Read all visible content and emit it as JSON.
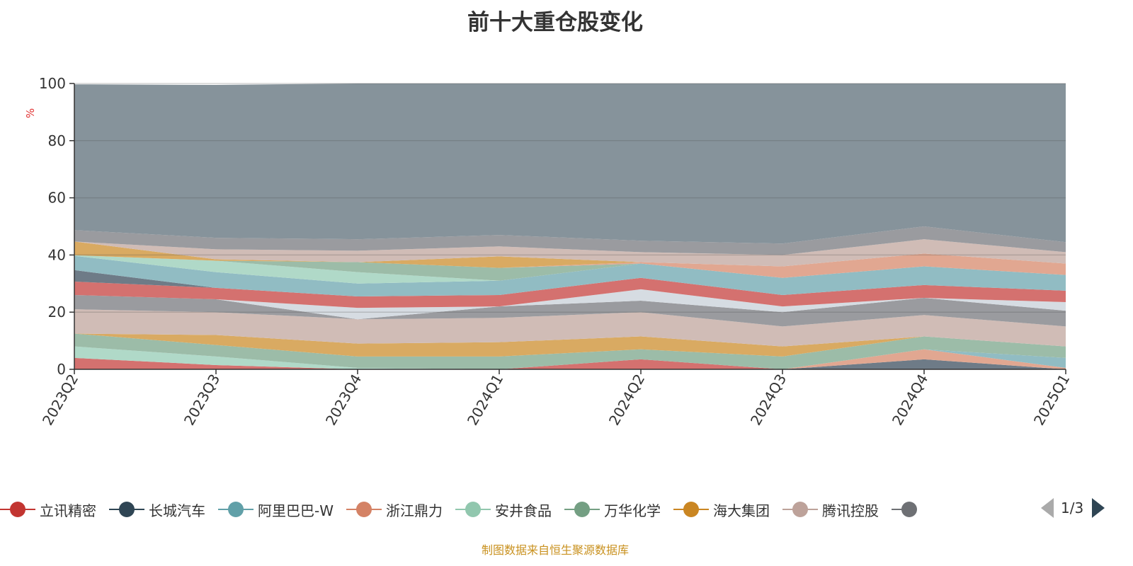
{
  "title": "前十大重仓股变化",
  "footer": "制图数据来自恒生聚源数据库",
  "legend": {
    "items": [
      {
        "name": "立讯精密",
        "color": "#c23531"
      },
      {
        "name": "长城汽车",
        "color": "#2f4554"
      },
      {
        "name": "阿里巴巴-W",
        "color": "#61a0a8"
      },
      {
        "name": "浙江鼎力",
        "color": "#d48265"
      },
      {
        "name": "安井食品",
        "color": "#91c7ae"
      },
      {
        "name": "万华化学",
        "color": "#749f83"
      },
      {
        "name": "海大集团",
        "color": "#ca8622"
      },
      {
        "name": "腾讯控股",
        "color": "#bda29a"
      },
      {
        "name": "",
        "color": "#6e7074"
      }
    ],
    "page": "1/3"
  },
  "chart_data": {
    "type": "area",
    "stacked": true,
    "title": "前十大重仓股变化",
    "xlabel": "",
    "ylabel": "%",
    "ylim": [
      0,
      100
    ],
    "yticks": [
      0,
      20,
      40,
      60,
      80,
      100
    ],
    "grid": true,
    "legend_position": "bottom",
    "categories": [
      "2023Q2",
      "2023Q3",
      "2023Q4",
      "2024Q1",
      "2024Q2",
      "2024Q3",
      "2024Q4",
      "2025Q1"
    ],
    "series": [
      {
        "name": "立讯精密",
        "color": "#d4716f",
        "values": [
          4,
          1.5,
          0,
          0,
          3.5,
          0,
          0,
          0
        ]
      },
      {
        "name": "长城汽车",
        "color": "#6e7b87",
        "values": [
          0,
          0,
          0,
          0,
          0,
          0,
          3.5,
          0
        ]
      },
      {
        "name": "浙江鼎力",
        "color": "#e1a791",
        "values": [
          0,
          0,
          0,
          0,
          0,
          0,
          3.5,
          0.5
        ]
      },
      {
        "name": "阿里巴巴-W",
        "color": "#91bcc3",
        "values": [
          0,
          0,
          0,
          0,
          0,
          0,
          0,
          3.5
        ]
      },
      {
        "name": "安井食品",
        "color": "#b0d9c8",
        "values": [
          4,
          3,
          0.5,
          0,
          0,
          0,
          0,
          0
        ]
      },
      {
        "name": "万华化学",
        "color": "#9cbca8",
        "values": [
          4.5,
          4,
          4,
          4.5,
          3.5,
          4.5,
          4.5,
          4
        ]
      },
      {
        "name": "海大集团",
        "color": "#d9aa62",
        "values": [
          0,
          3.5,
          4.5,
          5,
          4.5,
          3.5,
          0,
          0
        ]
      },
      {
        "name": "腾讯控股",
        "color": "#d0bcb6",
        "values": [
          8.5,
          8,
          8.5,
          8.5,
          8.5,
          7,
          7.5,
          7
        ]
      },
      {
        "name": null,
        "color": "#9a9b9f",
        "values": [
          5,
          4.5,
          0,
          4,
          4,
          5,
          6,
          5.5
        ]
      },
      {
        "name": null,
        "color": "#d6dce2",
        "values": [
          0,
          0,
          4,
          0,
          4,
          2,
          0,
          3
        ]
      },
      {
        "name": "立讯精密",
        "color": "#d4716f",
        "values": [
          4.7,
          4,
          4,
          4,
          4,
          4,
          4.5,
          4
        ]
      },
      {
        "name": "长城汽车",
        "color": "#6e7b87",
        "values": [
          4,
          0,
          0,
          0,
          0,
          0,
          0,
          0
        ]
      },
      {
        "name": "阿里巴巴-W",
        "color": "#91bcc3",
        "values": [
          5,
          5.5,
          4.5,
          5,
          5,
          6,
          6.5,
          5.5
        ]
      },
      {
        "name": "安井食品",
        "color": "#b0d9c8",
        "values": [
          0.2,
          4,
          4,
          0,
          0,
          0,
          0,
          0
        ]
      },
      {
        "name": "万华化学",
        "color": "#9cbca8",
        "values": [
          0,
          0,
          3.5,
          4.5,
          0,
          0,
          0,
          0
        ]
      },
      {
        "name": "浙江鼎力",
        "color": "#e1a791",
        "values": [
          0,
          0,
          0,
          0,
          0.5,
          4,
          4.5,
          4
        ]
      },
      {
        "name": "海大集团",
        "color": "#d9aa62",
        "values": [
          4.8,
          0.5,
          0,
          4,
          0,
          0,
          0,
          0
        ]
      },
      {
        "name": "腾讯控股",
        "color": "#d0bcb6",
        "values": [
          0,
          3.5,
          4,
          3.5,
          3.5,
          4,
          5,
          4
        ]
      },
      {
        "name": null,
        "color": "#9a9b9f",
        "values": [
          4,
          4,
          4,
          4,
          4,
          4,
          4.5,
          3.5
        ]
      },
      {
        "name": null,
        "color": "#86939b",
        "values": [
          51,
          53.5,
          54.5,
          53,
          55,
          56,
          50,
          55.5
        ]
      }
    ]
  }
}
